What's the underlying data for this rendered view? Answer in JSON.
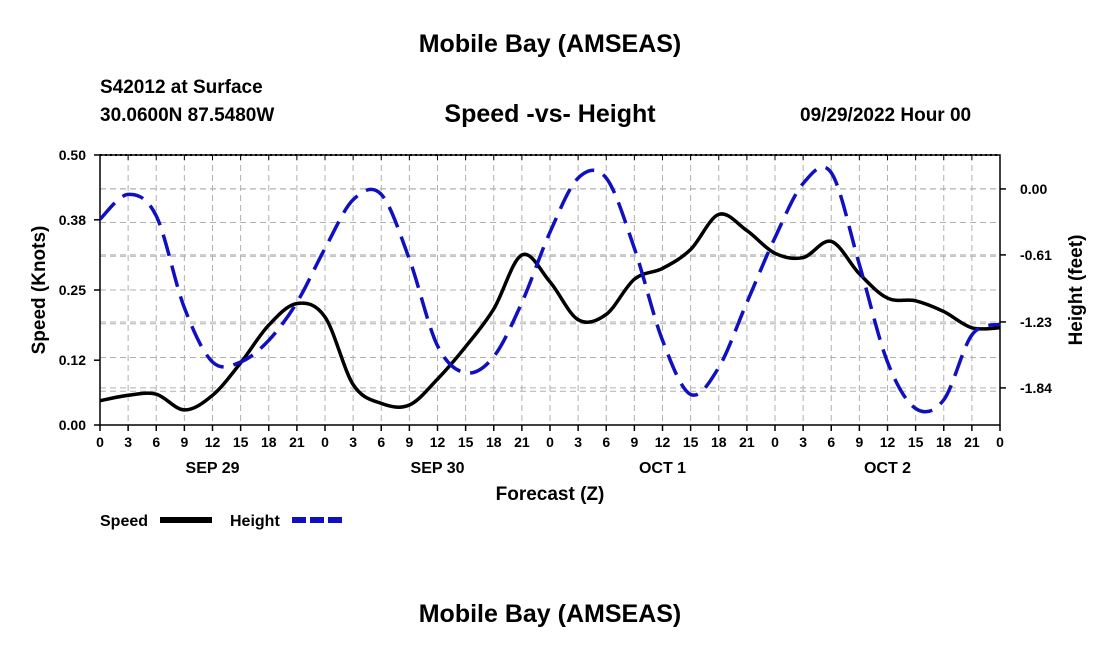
{
  "header": {
    "title": "Mobile Bay (AMSEAS)",
    "station": "S42012 at Surface",
    "location": "30.0600N  87.5480W",
    "chart_title": "Speed -vs- Height",
    "datetime": "09/29/2022 Hour 00"
  },
  "footer": {
    "title": "Mobile Bay (AMSEAS)"
  },
  "colors": {
    "speed": "#000000",
    "height": "#1010c0",
    "grid": "#b0b0b0"
  },
  "chart_data": {
    "type": "line",
    "title": "Speed -vs- Height",
    "xlabel": "Forecast (Z)",
    "ylabel": "Speed (Knots)",
    "y2label": "Height (feet)",
    "x_unit": "hours from 09/29/2022 00Z",
    "xlim": [
      0,
      96
    ],
    "ylim": [
      0,
      0.5
    ],
    "y2lim": [
      -2.183,
      0.314
    ],
    "x_ticks": [
      0,
      3,
      6,
      9,
      12,
      15,
      18,
      21,
      24,
      27,
      30,
      33,
      36,
      39,
      42,
      45,
      48,
      51,
      54,
      57,
      60,
      63,
      66,
      69,
      72,
      75,
      78,
      81,
      84,
      87,
      90,
      93,
      96
    ],
    "x_tick_labels": [
      "0",
      "3",
      "6",
      "9",
      "12",
      "15",
      "18",
      "21",
      "0",
      "3",
      "6",
      "9",
      "12",
      "15",
      "18",
      "21",
      "0",
      "3",
      "6",
      "9",
      "12",
      "15",
      "18",
      "21",
      "0",
      "3",
      "6",
      "9",
      "12",
      "15",
      "18",
      "21",
      "0"
    ],
    "day_labels": [
      {
        "x": 12,
        "label": "SEP 29"
      },
      {
        "x": 36,
        "label": "SEP 30"
      },
      {
        "x": 60,
        "label": "OCT 1"
      },
      {
        "x": 84,
        "label": "OCT 2"
      }
    ],
    "y_ticks": [
      0,
      0.12,
      0.25,
      0.38,
      0.5
    ],
    "y_tick_labels": [
      "0.00",
      "0.12",
      "0.25",
      "0.38",
      "0.50"
    ],
    "y2_ticks": [
      0,
      -0.61,
      -1.23,
      -1.84
    ],
    "y2_tick_labels": [
      "0.00",
      "-0.61",
      "-1.23",
      "-1.84"
    ],
    "grid": true,
    "legend": {
      "placement": "bottom-left",
      "entries": [
        "Speed",
        "Height"
      ]
    },
    "series": [
      {
        "name": "Speed",
        "axis": "left",
        "style": "solid",
        "color": "#000000",
        "x": [
          0,
          3,
          6,
          9,
          12,
          15,
          18,
          21,
          24,
          27,
          30,
          33,
          36,
          39,
          42,
          45,
          48,
          51,
          54,
          57,
          60,
          63,
          66,
          69,
          72,
          75,
          78,
          81,
          84,
          87,
          90,
          93,
          96
        ],
        "values": [
          0.045,
          0.055,
          0.057,
          0.028,
          0.055,
          0.115,
          0.185,
          0.225,
          0.2,
          0.075,
          0.04,
          0.037,
          0.085,
          0.145,
          0.215,
          0.315,
          0.265,
          0.195,
          0.205,
          0.27,
          0.29,
          0.325,
          0.39,
          0.36,
          0.318,
          0.31,
          0.34,
          0.28,
          0.235,
          0.23,
          0.21,
          0.18,
          0.18
        ]
      },
      {
        "name": "Height",
        "axis": "right",
        "style": "dashed",
        "color": "#1010c0",
        "x": [
          0,
          3,
          6,
          9,
          12,
          15,
          18,
          21,
          24,
          27,
          30,
          33,
          36,
          39,
          42,
          45,
          48,
          51,
          54,
          57,
          60,
          63,
          66,
          69,
          72,
          75,
          78,
          81,
          84,
          87,
          90,
          93,
          96
        ],
        "values": [
          -0.28,
          -0.05,
          -0.25,
          -1.1,
          -1.6,
          -1.6,
          -1.4,
          -1.05,
          -0.55,
          -0.1,
          -0.05,
          -0.65,
          -1.45,
          -1.7,
          -1.55,
          -1.05,
          -0.4,
          0.1,
          0.1,
          -0.55,
          -1.4,
          -1.9,
          -1.65,
          -1.05,
          -0.45,
          0.05,
          0.15,
          -0.7,
          -1.6,
          -2.03,
          -1.95,
          -1.35,
          -1.25
        ]
      }
    ]
  }
}
